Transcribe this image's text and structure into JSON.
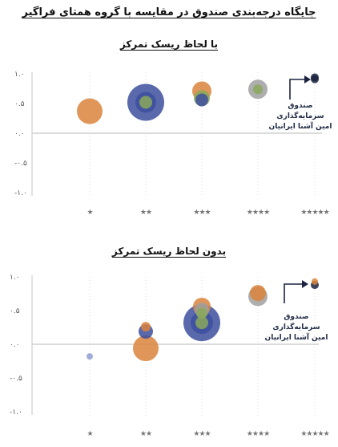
{
  "main_title": "جایگاه درجه‌بندی صندوق در مقایسه با گروه همتای فراگیر",
  "colors": {
    "orange": "#d9843b",
    "blue": "#3d4f9e",
    "green": "#8aa85a",
    "gray": "#a0a0a0",
    "navy": "#1c2340",
    "lightblue": "#8f9fd1",
    "axis": "#cfcfcf"
  },
  "chart_data": [
    {
      "type": "scatter",
      "title": "با لحاظ ریسک تمرکز",
      "yticks": [
        "۱.۰",
        "۰.۵",
        "۰.۰",
        "-۰.۵",
        "-۱.۰"
      ],
      "ylim": [
        -1.0,
        1.0
      ],
      "categories": [
        "★",
        "★★",
        "★★★",
        "★★★★",
        "★★★★★"
      ],
      "annotation": [
        "صندوق",
        "سرمایه‌گذاری",
        "امین آشنا ایرانیان"
      ],
      "points": [
        {
          "cat": 0,
          "y": 0.37,
          "size": 16,
          "color": "orange"
        },
        {
          "cat": 1,
          "y": 0.52,
          "size": 23,
          "color": "blue"
        },
        {
          "cat": 1,
          "y": 0.52,
          "size": 13,
          "color": "blue"
        },
        {
          "cat": 1,
          "y": 0.52,
          "size": 8,
          "color": "green"
        },
        {
          "cat": 2,
          "y": 0.71,
          "size": 12,
          "color": "orange"
        },
        {
          "cat": 2,
          "y": 0.59,
          "size": 10,
          "color": "green"
        },
        {
          "cat": 2,
          "y": 0.56,
          "size": 8,
          "color": "blue"
        },
        {
          "cat": 3,
          "y": 0.74,
          "size": 12,
          "color": "gray"
        },
        {
          "cat": 3,
          "y": 0.74,
          "size": 6,
          "color": "green"
        },
        {
          "cat": 4,
          "y": 0.94,
          "size": 5,
          "color": "navy"
        },
        {
          "cat": 4,
          "y": 0.91,
          "size": 5,
          "color": "navy"
        }
      ]
    },
    {
      "type": "scatter",
      "title": "بدون لحاظ ریسک تمرکز",
      "yticks": [
        "۱.۰",
        "۰.۵",
        "۰.۰",
        "-۰.۵",
        "-۱.۰"
      ],
      "ylim": [
        -1.0,
        1.0
      ],
      "categories": [
        "★",
        "★★",
        "★★★",
        "★★★★",
        "★★★★★"
      ],
      "annotation": [
        "صندوق",
        "سرمایه‌گذاری",
        "امین آشنا ایرانیان"
      ],
      "points": [
        {
          "cat": 0,
          "y": -0.18,
          "size": 4,
          "color": "lightblue"
        },
        {
          "cat": 1,
          "y": 0.26,
          "size": 6,
          "color": "orange"
        },
        {
          "cat": 1,
          "y": 0.19,
          "size": 9,
          "color": "blue"
        },
        {
          "cat": 1,
          "y": -0.06,
          "size": 16,
          "color": "orange"
        },
        {
          "cat": 2,
          "y": 0.56,
          "size": 11,
          "color": "orange"
        },
        {
          "cat": 2,
          "y": 0.51,
          "size": 9,
          "color": "gray"
        },
        {
          "cat": 2,
          "y": 0.46,
          "size": 7,
          "color": "green"
        },
        {
          "cat": 2,
          "y": 0.32,
          "size": 23,
          "color": "blue"
        },
        {
          "cat": 2,
          "y": 0.32,
          "size": 14,
          "color": "blue"
        },
        {
          "cat": 2,
          "y": 0.32,
          "size": 8,
          "color": "green"
        },
        {
          "cat": 3,
          "y": 0.76,
          "size": 10,
          "color": "orange"
        },
        {
          "cat": 3,
          "y": 0.71,
          "size": 12,
          "color": "gray"
        },
        {
          "cat": 4,
          "y": 0.93,
          "size": 4,
          "color": "orange"
        },
        {
          "cat": 4,
          "y": 0.88,
          "size": 5,
          "color": "navy"
        }
      ]
    }
  ]
}
